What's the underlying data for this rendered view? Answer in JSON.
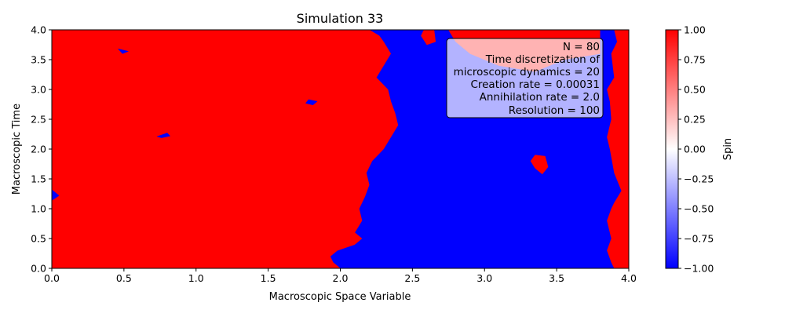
{
  "chart_data": {
    "type": "heatmap",
    "title": "Simulation 33",
    "xlabel": "Macroscopic Space Variable",
    "ylabel": "Macroscopic Time",
    "xlim": [
      0.0,
      4.0
    ],
    "ylim": [
      0.0,
      4.0
    ],
    "x_ticks": [
      "0.0",
      "0.5",
      "1.0",
      "1.5",
      "2.0",
      "2.5",
      "3.0",
      "3.5",
      "4.0"
    ],
    "y_ticks": [
      "0.0",
      "0.5",
      "1.0",
      "1.5",
      "2.0",
      "2.5",
      "3.0",
      "3.5",
      "4.0"
    ],
    "colorbar": {
      "label": "Spin",
      "vmin": -1.0,
      "vmax": 1.0,
      "colormap": "bwr",
      "ticks": [
        "1.00",
        "0.75",
        "0.50",
        "0.25",
        "0.00",
        "−0.25",
        "−0.50",
        "−0.75",
        "−1.00"
      ]
    },
    "info_box": {
      "lines": [
        "N = 80",
        "Time discretization of",
        "microscopic dynamics = 20",
        "Creation rate = 0.00031",
        "Annihilation rate = 2.0",
        "Resolution = 100"
      ]
    },
    "colors": {
      "spin_up": "#ff0000",
      "spin_down": "#0000ff"
    },
    "regions": [
      {
        "spin": 1,
        "name": "left-domain",
        "boundary": [
          [
            0.0,
            0.0
          ],
          [
            2.0,
            0.0
          ],
          [
            1.95,
            0.1
          ],
          [
            1.93,
            0.2
          ],
          [
            1.98,
            0.3
          ],
          [
            2.1,
            0.4
          ],
          [
            2.15,
            0.5
          ],
          [
            2.1,
            0.6
          ],
          [
            2.15,
            0.8
          ],
          [
            2.13,
            1.0
          ],
          [
            2.17,
            1.2
          ],
          [
            2.2,
            1.4
          ],
          [
            2.18,
            1.6
          ],
          [
            2.22,
            1.8
          ],
          [
            2.3,
            2.0
          ],
          [
            2.35,
            2.2
          ],
          [
            2.4,
            2.4
          ],
          [
            2.38,
            2.6
          ],
          [
            2.35,
            2.8
          ],
          [
            2.33,
            3.0
          ],
          [
            2.25,
            3.2
          ],
          [
            2.3,
            3.4
          ],
          [
            2.35,
            3.6
          ],
          [
            2.3,
            3.8
          ],
          [
            2.27,
            3.9
          ],
          [
            2.2,
            4.0
          ],
          [
            0.0,
            4.0
          ]
        ]
      },
      {
        "spin": 1,
        "name": "right-edge-domain",
        "boundary": [
          [
            3.9,
            0.0
          ],
          [
            4.0,
            0.0
          ],
          [
            4.0,
            4.0
          ],
          [
            3.9,
            4.0
          ],
          [
            3.92,
            3.8
          ],
          [
            3.88,
            3.6
          ],
          [
            3.9,
            3.2
          ],
          [
            3.85,
            3.0
          ],
          [
            3.87,
            2.8
          ],
          [
            3.88,
            2.5
          ],
          [
            3.85,
            2.2
          ],
          [
            3.87,
            2.0
          ],
          [
            3.9,
            1.6
          ],
          [
            3.95,
            1.3
          ],
          [
            3.9,
            1.1
          ],
          [
            3.88,
            1.0
          ],
          [
            3.85,
            0.8
          ],
          [
            3.88,
            0.5
          ],
          [
            3.85,
            0.3
          ],
          [
            3.88,
            0.1
          ]
        ]
      },
      {
        "spin": 1,
        "name": "upper-right-domain",
        "boundary": [
          [
            2.75,
            4.0
          ],
          [
            3.8,
            4.0
          ],
          [
            3.8,
            3.6
          ],
          [
            3.55,
            3.5
          ],
          [
            3.35,
            3.3
          ],
          [
            3.1,
            3.4
          ],
          [
            2.9,
            3.6
          ],
          [
            2.8,
            3.8
          ]
        ]
      },
      {
        "spin": 1,
        "name": "island-a",
        "boundary": [
          [
            3.35,
            1.9
          ],
          [
            3.42,
            1.88
          ],
          [
            3.44,
            1.7
          ],
          [
            3.4,
            1.58
          ],
          [
            3.35,
            1.68
          ],
          [
            3.32,
            1.8
          ]
        ]
      },
      {
        "spin": 1,
        "name": "island-b",
        "boundary": [
          [
            2.58,
            4.0
          ],
          [
            2.65,
            4.0
          ],
          [
            2.66,
            3.8
          ],
          [
            2.6,
            3.75
          ],
          [
            2.56,
            3.9
          ]
        ]
      },
      {
        "spin": -1,
        "name": "island-c",
        "boundary": [
          [
            0.0,
            1.32
          ],
          [
            0.05,
            1.22
          ],
          [
            0.0,
            1.14
          ]
        ]
      },
      {
        "spin": -1,
        "name": "island-d",
        "boundary": [
          [
            0.46,
            3.68
          ],
          [
            0.53,
            3.64
          ],
          [
            0.49,
            3.6
          ]
        ]
      },
      {
        "spin": -1,
        "name": "island-e",
        "boundary": [
          [
            1.78,
            2.83
          ],
          [
            1.84,
            2.8
          ],
          [
            1.81,
            2.74
          ],
          [
            1.76,
            2.77
          ]
        ]
      },
      {
        "spin": -1,
        "name": "island-f",
        "boundary": [
          [
            0.73,
            2.21
          ],
          [
            0.8,
            2.27
          ],
          [
            0.82,
            2.22
          ],
          [
            0.76,
            2.19
          ]
        ]
      }
    ]
  }
}
